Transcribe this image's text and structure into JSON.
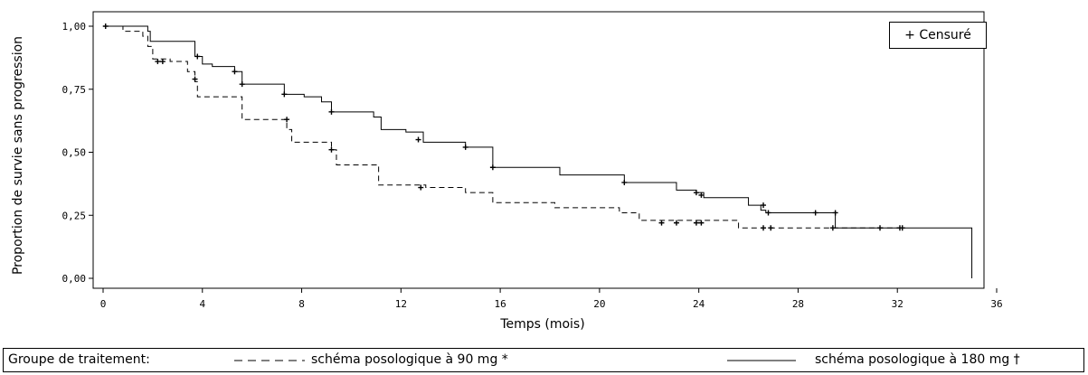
{
  "chart_data": {
    "type": "line",
    "subtype": "kaplan-meier step",
    "ylabel": "Proportion de survie sans progression",
    "xlabel": "Temps (mois)",
    "xlim": [
      0,
      36
    ],
    "ylim": [
      0,
      1.0
    ],
    "x_ticks": [
      "0",
      "4",
      "8",
      "12",
      "16",
      "20",
      "24",
      "28",
      "32",
      "36"
    ],
    "y_ticks": [
      "0,00",
      "0,25",
      "0,50",
      "0,75",
      "1,00"
    ],
    "grid": false,
    "censor_legend": "+ Censuré",
    "series": [
      {
        "name": "schéma posologique à 90 mg *",
        "line_style": "dashed",
        "steps": [
          [
            0,
            1.0
          ],
          [
            0.8,
            0.98
          ],
          [
            1.6,
            0.96
          ],
          [
            1.8,
            0.92
          ],
          [
            2.0,
            0.87
          ],
          [
            2.7,
            0.86
          ],
          [
            3.4,
            0.82
          ],
          [
            3.7,
            0.78
          ],
          [
            3.8,
            0.72
          ],
          [
            5.0,
            0.72
          ],
          [
            5.6,
            0.63
          ],
          [
            7.4,
            0.59
          ],
          [
            7.6,
            0.54
          ],
          [
            9.2,
            0.51
          ],
          [
            9.4,
            0.45
          ],
          [
            10.6,
            0.45
          ],
          [
            11.1,
            0.37
          ],
          [
            13.0,
            0.36
          ],
          [
            14.6,
            0.34
          ],
          [
            15.7,
            0.3
          ],
          [
            18.2,
            0.28
          ],
          [
            20.8,
            0.26
          ],
          [
            21.6,
            0.23
          ],
          [
            25.6,
            0.2
          ],
          [
            29.6,
            0.2
          ],
          [
            32.3,
            0.2
          ]
        ],
        "censored": [
          [
            2.2,
            0.86
          ],
          [
            2.4,
            0.86
          ],
          [
            3.7,
            0.79
          ],
          [
            7.4,
            0.63
          ],
          [
            9.2,
            0.51
          ],
          [
            12.8,
            0.36
          ],
          [
            22.5,
            0.22
          ],
          [
            23.1,
            0.22
          ],
          [
            23.9,
            0.22
          ],
          [
            24.1,
            0.22
          ],
          [
            26.6,
            0.2
          ],
          [
            26.9,
            0.2
          ],
          [
            29.4,
            0.2
          ],
          [
            31.3,
            0.2
          ],
          [
            32.1,
            0.2
          ]
        ]
      },
      {
        "name": "schéma posologique à 180 mg †",
        "line_style": "solid",
        "steps": [
          [
            0,
            1.0
          ],
          [
            1.8,
            0.98
          ],
          [
            1.9,
            0.94
          ],
          [
            3.7,
            0.88
          ],
          [
            4.0,
            0.85
          ],
          [
            4.4,
            0.84
          ],
          [
            5.3,
            0.82
          ],
          [
            5.6,
            0.77
          ],
          [
            7.3,
            0.73
          ],
          [
            8.1,
            0.72
          ],
          [
            8.8,
            0.7
          ],
          [
            9.2,
            0.66
          ],
          [
            10.9,
            0.64
          ],
          [
            11.2,
            0.59
          ],
          [
            12.2,
            0.58
          ],
          [
            12.9,
            0.54
          ],
          [
            14.6,
            0.52
          ],
          [
            15.7,
            0.44
          ],
          [
            18.4,
            0.41
          ],
          [
            21.0,
            0.38
          ],
          [
            23.1,
            0.35
          ],
          [
            23.9,
            0.34
          ],
          [
            24.2,
            0.32
          ],
          [
            26.0,
            0.29
          ],
          [
            26.5,
            0.27
          ],
          [
            26.7,
            0.26
          ],
          [
            29.5,
            0.2
          ],
          [
            35.0,
            0.2
          ],
          [
            35.0,
            0.0
          ]
        ],
        "censored": [
          [
            0.1,
            1.0
          ],
          [
            3.8,
            0.88
          ],
          [
            5.3,
            0.82
          ],
          [
            5.6,
            0.77
          ],
          [
            7.3,
            0.73
          ],
          [
            9.2,
            0.66
          ],
          [
            12.7,
            0.55
          ],
          [
            14.6,
            0.52
          ],
          [
            15.7,
            0.44
          ],
          [
            21.0,
            0.38
          ],
          [
            23.9,
            0.34
          ],
          [
            24.1,
            0.33
          ],
          [
            26.6,
            0.29
          ],
          [
            26.8,
            0.26
          ],
          [
            28.7,
            0.26
          ],
          [
            29.5,
            0.26
          ],
          [
            32.2,
            0.2
          ]
        ]
      }
    ]
  },
  "legend": {
    "group_label": "Groupe de traitement:",
    "series_90_label": "schéma posologique à 90 mg *",
    "series_180_label": "schéma posologique à 180 mg †"
  }
}
